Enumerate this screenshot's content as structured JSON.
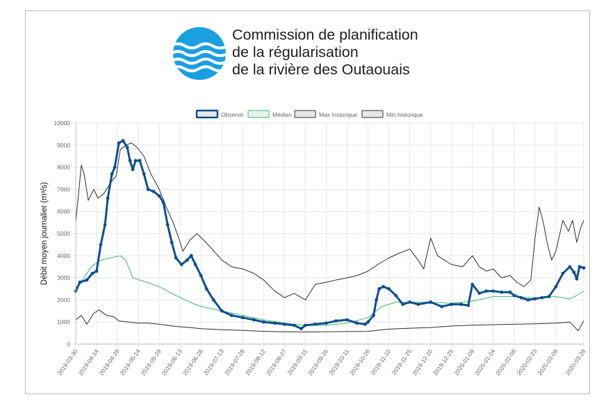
{
  "header": {
    "org_lines": [
      "Commission de planification",
      "de la régularisation",
      "de la rivière des Outaouais"
    ],
    "logo_icon": "water-waves-logo-icon"
  },
  "colors": {
    "observed": "#0d4f8b",
    "median": "#3cb371",
    "max": "#2b2b2b",
    "min": "#2b2b2b",
    "grid": "#e6e6e6",
    "logo": "#1aa0e0"
  },
  "chart_data": {
    "type": "line",
    "title": "",
    "xlabel": "",
    "ylabel": "Débit moyen journalier (m³/s)",
    "ylim": [
      0,
      10000
    ],
    "yticks": [
      0,
      1000,
      2000,
      3000,
      4000,
      5000,
      6000,
      7000,
      8000,
      9000,
      10000
    ],
    "xlim": [
      "2019-03-30",
      "2020-03-29"
    ],
    "xticks": [
      "2019-03-30",
      "2019-04-14",
      "2019-04-29",
      "2019-05-14",
      "2019-05-29",
      "2019-06-13",
      "2019-06-28",
      "2019-07-13",
      "2019-07-28",
      "2019-08-12",
      "2019-08-27",
      "2019-09-11",
      "2019-09-26",
      "2019-10-11",
      "2019-10-26",
      "2019-11-10",
      "2019-11-25",
      "2019-12-10",
      "2019-12-25",
      "2020-01-09",
      "2020-01-24",
      "2020-02-08",
      "2020-02-23",
      "2020-03-09",
      "2020-03-29"
    ],
    "grid": true,
    "legend_position": "top-center",
    "series": [
      {
        "name": "Observé",
        "points": [
          [
            "2019-03-30",
            2400
          ],
          [
            "2019-04-02",
            2800
          ],
          [
            "2019-04-07",
            2900
          ],
          [
            "2019-04-11",
            3200
          ],
          [
            "2019-04-14",
            3300
          ],
          [
            "2019-04-17",
            4500
          ],
          [
            "2019-04-20",
            5400
          ],
          [
            "2019-04-22",
            6600
          ],
          [
            "2019-04-25",
            7700
          ],
          [
            "2019-04-27",
            8000
          ],
          [
            "2019-04-30",
            9100
          ],
          [
            "2019-05-03",
            9200
          ],
          [
            "2019-05-06",
            8900
          ],
          [
            "2019-05-08",
            8300
          ],
          [
            "2019-05-10",
            7900
          ],
          [
            "2019-05-12",
            8300
          ],
          [
            "2019-05-15",
            8300
          ],
          [
            "2019-05-18",
            7700
          ],
          [
            "2019-05-21",
            7000
          ],
          [
            "2019-05-25",
            6900
          ],
          [
            "2019-05-29",
            6700
          ],
          [
            "2019-06-01",
            6400
          ],
          [
            "2019-06-04",
            5400
          ],
          [
            "2019-06-07",
            4600
          ],
          [
            "2019-06-10",
            3900
          ],
          [
            "2019-06-14",
            3600
          ],
          [
            "2019-06-18",
            3800
          ],
          [
            "2019-06-21",
            4000
          ],
          [
            "2019-06-24",
            3600
          ],
          [
            "2019-06-28",
            3100
          ],
          [
            "2019-07-02",
            2500
          ],
          [
            "2019-07-07",
            2000
          ],
          [
            "2019-07-13",
            1500
          ],
          [
            "2019-07-20",
            1300
          ],
          [
            "2019-07-28",
            1200
          ],
          [
            "2019-08-05",
            1100
          ],
          [
            "2019-08-12",
            1000
          ],
          [
            "2019-08-20",
            950
          ],
          [
            "2019-08-27",
            900
          ],
          [
            "2019-09-03",
            850
          ],
          [
            "2019-09-08",
            700
          ],
          [
            "2019-09-11",
            850
          ],
          [
            "2019-09-18",
            900
          ],
          [
            "2019-09-26",
            950
          ],
          [
            "2019-10-03",
            1050
          ],
          [
            "2019-10-11",
            1100
          ],
          [
            "2019-10-18",
            950
          ],
          [
            "2019-10-24",
            900
          ],
          [
            "2019-10-26",
            1000
          ],
          [
            "2019-10-30",
            1300
          ],
          [
            "2019-11-01",
            2000
          ],
          [
            "2019-11-03",
            2500
          ],
          [
            "2019-11-06",
            2600
          ],
          [
            "2019-11-10",
            2500
          ],
          [
            "2019-11-15",
            2200
          ],
          [
            "2019-11-20",
            1800
          ],
          [
            "2019-11-25",
            1900
          ],
          [
            "2019-12-01",
            1800
          ],
          [
            "2019-12-10",
            1900
          ],
          [
            "2019-12-18",
            1700
          ],
          [
            "2019-12-25",
            1800
          ],
          [
            "2020-01-01",
            1800
          ],
          [
            "2020-01-06",
            1750
          ],
          [
            "2020-01-09",
            2700
          ],
          [
            "2020-01-14",
            2300
          ],
          [
            "2020-01-19",
            2400
          ],
          [
            "2020-01-24",
            2400
          ],
          [
            "2020-01-30",
            2350
          ],
          [
            "2020-02-05",
            2350
          ],
          [
            "2020-02-08",
            2200
          ],
          [
            "2020-02-13",
            2100
          ],
          [
            "2020-02-18",
            2000
          ],
          [
            "2020-02-23",
            2050
          ],
          [
            "2020-02-28",
            2100
          ],
          [
            "2020-03-04",
            2150
          ],
          [
            "2020-03-09",
            2600
          ],
          [
            "2020-03-14",
            3200
          ],
          [
            "2020-03-19",
            3500
          ],
          [
            "2020-03-22",
            3250
          ],
          [
            "2020-03-24",
            2950
          ],
          [
            "2020-03-26",
            3500
          ],
          [
            "2020-03-29",
            3450
          ]
        ]
      },
      {
        "name": "Médian",
        "points": [
          [
            "2019-03-30",
            2550
          ],
          [
            "2019-04-05",
            3000
          ],
          [
            "2019-04-10",
            3500
          ],
          [
            "2019-04-17",
            3800
          ],
          [
            "2019-04-24",
            3900
          ],
          [
            "2019-05-01",
            4000
          ],
          [
            "2019-05-05",
            3800
          ],
          [
            "2019-05-10",
            3000
          ],
          [
            "2019-05-20",
            2800
          ],
          [
            "2019-05-29",
            2600
          ],
          [
            "2019-06-10",
            2200
          ],
          [
            "2019-06-20",
            1900
          ],
          [
            "2019-06-28",
            1700
          ],
          [
            "2019-07-13",
            1500
          ],
          [
            "2019-07-28",
            1300
          ],
          [
            "2019-08-12",
            1100
          ],
          [
            "2019-08-27",
            950
          ],
          [
            "2019-09-11",
            850
          ],
          [
            "2019-09-26",
            850
          ],
          [
            "2019-10-11",
            950
          ],
          [
            "2019-10-26",
            1200
          ],
          [
            "2019-11-05",
            1700
          ],
          [
            "2019-11-15",
            1900
          ],
          [
            "2019-11-25",
            1900
          ],
          [
            "2019-12-10",
            1900
          ],
          [
            "2019-12-25",
            1850
          ],
          [
            "2020-01-09",
            1950
          ],
          [
            "2020-01-24",
            2150
          ],
          [
            "2020-02-08",
            2150
          ],
          [
            "2020-02-23",
            2100
          ],
          [
            "2020-03-09",
            2150
          ],
          [
            "2020-03-19",
            2050
          ],
          [
            "2020-03-24",
            2200
          ],
          [
            "2020-03-29",
            2400
          ]
        ]
      },
      {
        "name": "Max historique",
        "points": [
          [
            "2019-03-30",
            5500
          ],
          [
            "2019-04-01",
            6800
          ],
          [
            "2019-04-03",
            8100
          ],
          [
            "2019-04-05",
            7700
          ],
          [
            "2019-04-08",
            6500
          ],
          [
            "2019-04-12",
            7000
          ],
          [
            "2019-04-15",
            6600
          ],
          [
            "2019-04-19",
            6800
          ],
          [
            "2019-04-24",
            7300
          ],
          [
            "2019-04-28",
            7600
          ],
          [
            "2019-05-01",
            8800
          ],
          [
            "2019-05-05",
            9000
          ],
          [
            "2019-05-09",
            9100
          ],
          [
            "2019-05-13",
            8900
          ],
          [
            "2019-05-18",
            8500
          ],
          [
            "2019-05-23",
            7700
          ],
          [
            "2019-05-29",
            7000
          ],
          [
            "2019-06-03",
            6200
          ],
          [
            "2019-06-08",
            5500
          ],
          [
            "2019-06-12",
            4800
          ],
          [
            "2019-06-15",
            4200
          ],
          [
            "2019-06-20",
            4700
          ],
          [
            "2019-06-25",
            5000
          ],
          [
            "2019-06-30",
            4700
          ],
          [
            "2019-07-06",
            4300
          ],
          [
            "2019-07-13",
            3800
          ],
          [
            "2019-07-20",
            3500
          ],
          [
            "2019-07-28",
            3400
          ],
          [
            "2019-08-05",
            3200
          ],
          [
            "2019-08-12",
            2900
          ],
          [
            "2019-08-20",
            2400
          ],
          [
            "2019-08-27",
            2100
          ],
          [
            "2019-09-03",
            2300
          ],
          [
            "2019-09-11",
            2000
          ],
          [
            "2019-09-18",
            2700
          ],
          [
            "2019-09-26",
            2800
          ],
          [
            "2019-10-03",
            2900
          ],
          [
            "2019-10-11",
            3000
          ],
          [
            "2019-10-18",
            3100
          ],
          [
            "2019-10-26",
            3300
          ],
          [
            "2019-11-02",
            3600
          ],
          [
            "2019-11-10",
            3900
          ],
          [
            "2019-11-17",
            4100
          ],
          [
            "2019-11-25",
            4300
          ],
          [
            "2019-12-01",
            3800
          ],
          [
            "2019-12-05",
            3400
          ],
          [
            "2019-12-10",
            4800
          ],
          [
            "2019-12-15",
            4000
          ],
          [
            "2019-12-25",
            3600
          ],
          [
            "2020-01-02",
            3500
          ],
          [
            "2020-01-09",
            4000
          ],
          [
            "2020-01-14",
            3500
          ],
          [
            "2020-01-19",
            3300
          ],
          [
            "2020-01-24",
            3400
          ],
          [
            "2020-01-30",
            3000
          ],
          [
            "2020-02-05",
            3100
          ],
          [
            "2020-02-10",
            2800
          ],
          [
            "2020-02-15",
            2600
          ],
          [
            "2020-02-20",
            2900
          ],
          [
            "2020-02-23",
            4800
          ],
          [
            "2020-02-26",
            6200
          ],
          [
            "2020-02-29",
            5500
          ],
          [
            "2020-03-03",
            4500
          ],
          [
            "2020-03-06",
            3800
          ],
          [
            "2020-03-09",
            4200
          ],
          [
            "2020-03-14",
            5600
          ],
          [
            "2020-03-18",
            5100
          ],
          [
            "2020-03-21",
            5600
          ],
          [
            "2020-03-24",
            4600
          ],
          [
            "2020-03-27",
            5300
          ],
          [
            "2020-03-29",
            5600
          ]
        ]
      },
      {
        "name": "Min historique",
        "points": [
          [
            "2019-03-30",
            1100
          ],
          [
            "2019-04-03",
            1300
          ],
          [
            "2019-04-07",
            900
          ],
          [
            "2019-04-12",
            1400
          ],
          [
            "2019-04-16",
            1550
          ],
          [
            "2019-04-21",
            1300
          ],
          [
            "2019-04-26",
            1250
          ],
          [
            "2019-04-30",
            1050
          ],
          [
            "2019-05-07",
            1000
          ],
          [
            "2019-05-14",
            950
          ],
          [
            "2019-05-21",
            950
          ],
          [
            "2019-05-29",
            900
          ],
          [
            "2019-06-10",
            800
          ],
          [
            "2019-06-20",
            750
          ],
          [
            "2019-06-28",
            700
          ],
          [
            "2019-07-13",
            650
          ],
          [
            "2019-07-28",
            620
          ],
          [
            "2019-08-12",
            580
          ],
          [
            "2019-08-27",
            560
          ],
          [
            "2019-09-11",
            550
          ],
          [
            "2019-09-26",
            560
          ],
          [
            "2019-10-11",
            570
          ],
          [
            "2019-10-26",
            580
          ],
          [
            "2019-11-10",
            680
          ],
          [
            "2019-11-25",
            720
          ],
          [
            "2019-12-10",
            750
          ],
          [
            "2019-12-25",
            820
          ],
          [
            "2020-01-09",
            860
          ],
          [
            "2020-01-24",
            880
          ],
          [
            "2020-02-08",
            900
          ],
          [
            "2020-02-23",
            920
          ],
          [
            "2020-03-09",
            950
          ],
          [
            "2020-03-19",
            1000
          ],
          [
            "2020-03-25",
            600
          ],
          [
            "2020-03-29",
            1050
          ]
        ]
      }
    ]
  }
}
